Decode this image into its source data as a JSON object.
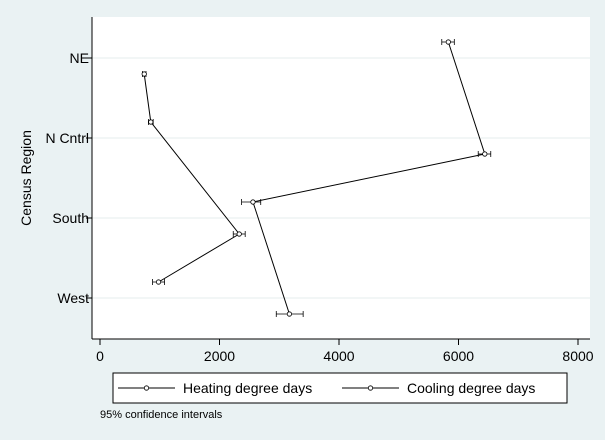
{
  "chart_data": {
    "type": "line",
    "title": "",
    "xlabel": "",
    "ylabel": "Census Region",
    "categories": [
      "NE",
      "N Cntrl",
      "South",
      "West"
    ],
    "xlim": [
      0,
      8000
    ],
    "xticks": [
      0,
      2000,
      4000,
      6000,
      8000
    ],
    "grid": true,
    "legend_position": "bottom",
    "series": [
      {
        "name": "Heating degree days",
        "points": [
          {
            "category": "NE",
            "value": 5830,
            "ci": [
              5720,
              5930
            ]
          },
          {
            "category": "N Cntrl",
            "value": 6440,
            "ci": [
              6330,
              6540
            ]
          },
          {
            "category": "South",
            "value": 2560,
            "ci": [
              2370,
              2690
            ]
          },
          {
            "category": "West",
            "value": 3170,
            "ci": [
              2950,
              3400
            ]
          }
        ]
      },
      {
        "name": "Cooling degree days",
        "points": [
          {
            "category": "NE",
            "value": 740,
            "ci": [
              710,
              770
            ]
          },
          {
            "category": "N Cntrl",
            "value": 850,
            "ci": [
              810,
              890
            ]
          },
          {
            "category": "South",
            "value": 2330,
            "ci": [
              2230,
              2430
            ]
          },
          {
            "category": "West",
            "value": 980,
            "ci": [
              880,
              1080
            ]
          }
        ]
      }
    ],
    "note": "95% confidence intervals"
  }
}
